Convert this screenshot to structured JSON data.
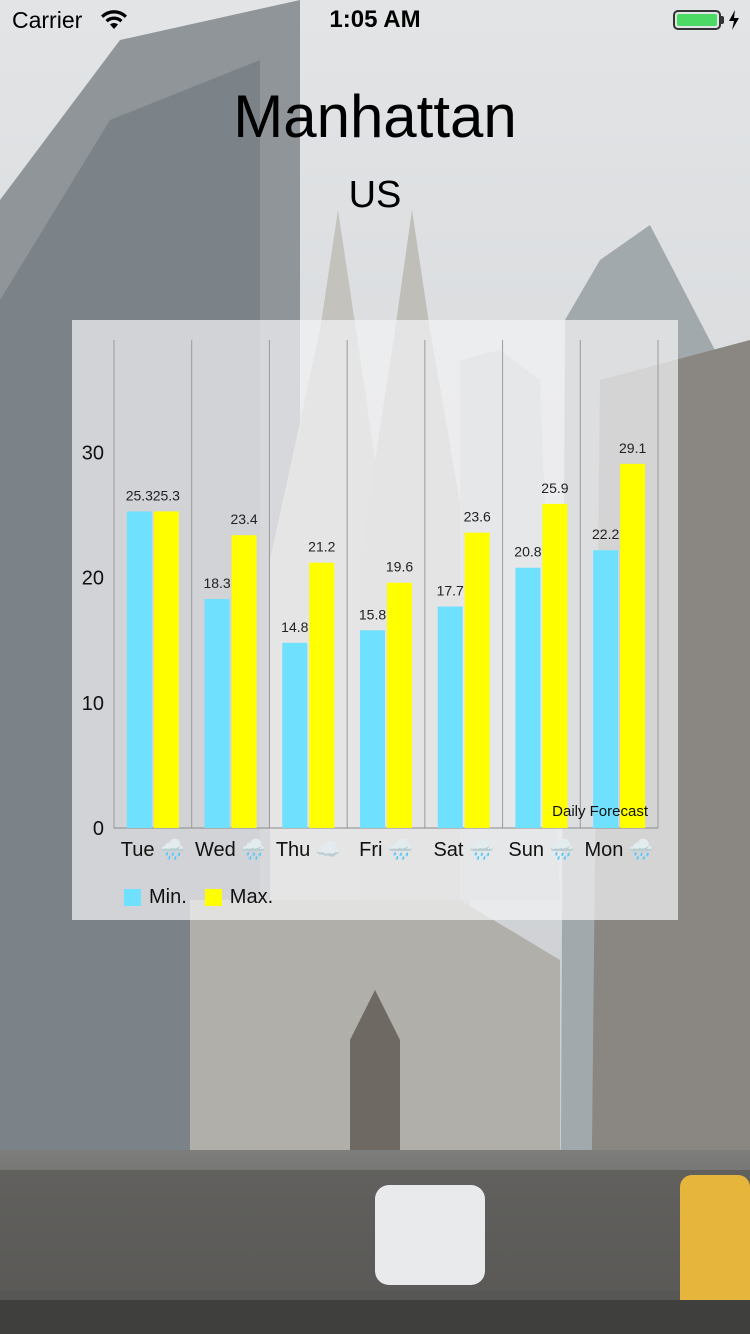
{
  "status_bar": {
    "carrier": "Carrier",
    "time": "1:05 AM",
    "battery_level": 1.0
  },
  "location": {
    "city": "Manhattan",
    "country": "US"
  },
  "colors": {
    "min_series": "#70e0ff",
    "max_series": "#ffff00",
    "battery": "#4cd964"
  },
  "chart_data": {
    "type": "bar",
    "categories": [
      "Tue 🌧️",
      "Wed 🌧️",
      "Thu ☁️",
      "Fri 🌧️",
      "Sat 🌧️",
      "Sun 🌧️",
      "Mon 🌧️"
    ],
    "series": [
      {
        "name": "Min.",
        "color": "#70e0ff",
        "values": [
          25.3,
          18.3,
          14.8,
          15.8,
          17.7,
          20.8,
          22.2
        ]
      },
      {
        "name": "Max.",
        "color": "#ffff00",
        "values": [
          25.3,
          23.4,
          21.2,
          19.6,
          23.6,
          25.9,
          29.1
        ]
      }
    ],
    "yticks": [
      0,
      10,
      20,
      30
    ],
    "ylim": [
      0,
      39
    ],
    "description": "Daily Forecast",
    "grid": "vertical",
    "legend_position": "bottom-left"
  }
}
